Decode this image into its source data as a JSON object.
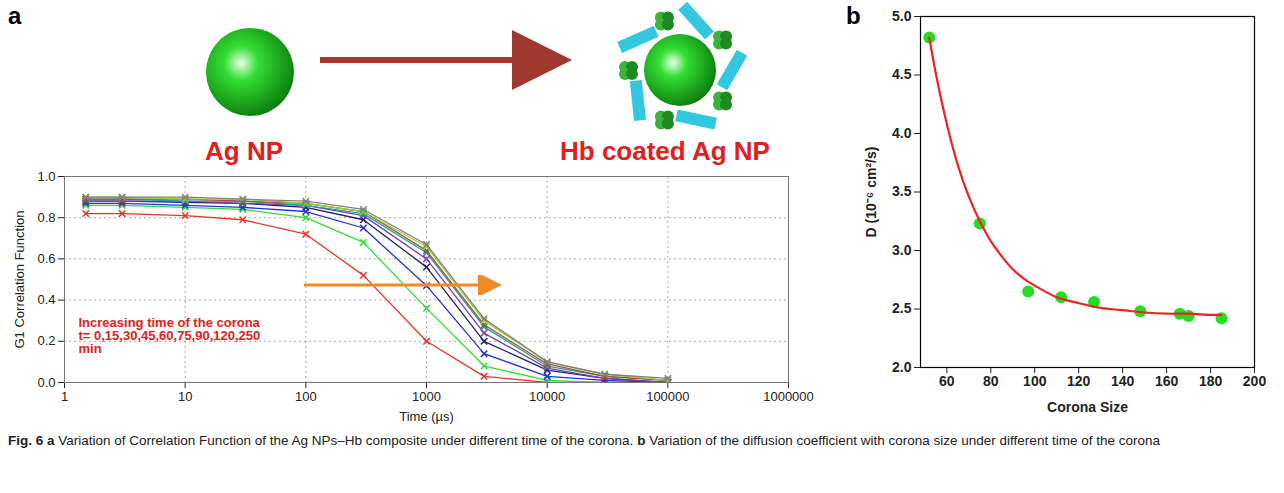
{
  "chart_data": [
    {
      "type": "line",
      "panel_label": "a",
      "xlabel": "Time (µs)",
      "ylabel": "G1 Correlation Function",
      "log": "x",
      "grid": true,
      "marker": "x",
      "annotations": [
        "Increasing time of the corona",
        "t= 0,15,30,45,60,75,90,120,250",
        "min"
      ],
      "xlim": [
        1,
        1000000
      ],
      "xticks": [
        1,
        10,
        100,
        1000,
        10000,
        100000,
        1000000
      ],
      "ylim": [
        0,
        1
      ],
      "yticks": [
        {
          "value": 0,
          "label": "0.0"
        },
        {
          "value": 0.2,
          "label": "0.2"
        },
        {
          "value": 0.4,
          "label": "0.4"
        },
        {
          "value": 0.6,
          "label": "0.6"
        },
        {
          "value": 0.8,
          "label": "0.8"
        },
        {
          "value": 1,
          "label": "1.0"
        }
      ],
      "x": [
        1.5,
        3,
        10,
        30,
        100,
        300,
        1000,
        3000,
        10000,
        30000,
        100000
      ],
      "series": [
        {
          "color": "#e8362d",
          "values": [
            0.82,
            0.82,
            0.81,
            0.79,
            0.72,
            0.52,
            0.2,
            0.03,
            0.0,
            0.0,
            0.0
          ]
        },
        {
          "color": "#33dd33",
          "values": [
            0.86,
            0.86,
            0.85,
            0.84,
            0.8,
            0.68,
            0.36,
            0.08,
            0.01,
            0.0,
            0.0
          ]
        },
        {
          "color": "#2233dd",
          "values": [
            0.87,
            0.87,
            0.86,
            0.85,
            0.83,
            0.75,
            0.47,
            0.14,
            0.03,
            0.01,
            0.0
          ]
        },
        {
          "color": "#1f1f7a",
          "values": [
            0.88,
            0.88,
            0.875,
            0.87,
            0.85,
            0.79,
            0.56,
            0.2,
            0.06,
            0.02,
            0.0
          ]
        },
        {
          "color": "#7b3fa0",
          "values": [
            0.88,
            0.88,
            0.88,
            0.87,
            0.86,
            0.81,
            0.6,
            0.24,
            0.07,
            0.02,
            0.0
          ]
        },
        {
          "color": "#20a0a0",
          "values": [
            0.89,
            0.89,
            0.88,
            0.88,
            0.86,
            0.82,
            0.63,
            0.27,
            0.08,
            0.03,
            0.01
          ]
        },
        {
          "color": "#a0522d",
          "values": [
            0.89,
            0.89,
            0.89,
            0.88,
            0.87,
            0.83,
            0.64,
            0.28,
            0.09,
            0.03,
            0.01
          ]
        },
        {
          "color": "#9acd32",
          "values": [
            0.9,
            0.9,
            0.89,
            0.89,
            0.87,
            0.83,
            0.66,
            0.3,
            0.1,
            0.04,
            0.01
          ]
        },
        {
          "color": "#808080",
          "values": [
            0.9,
            0.9,
            0.9,
            0.89,
            0.88,
            0.84,
            0.67,
            0.31,
            0.1,
            0.04,
            0.02
          ]
        }
      ]
    },
    {
      "type": "scatter",
      "panel_label": "b",
      "xlabel": "Corona Size",
      "ylabel": "D (10⁻⁶ cm²/s)",
      "xlim": [
        48,
        200
      ],
      "xticks": [
        60,
        80,
        100,
        120,
        140,
        160,
        180,
        200
      ],
      "ylim": [
        2,
        5
      ],
      "yticks": [
        {
          "value": 2,
          "label": "2.0"
        },
        {
          "value": 2.5,
          "label": "2.5"
        },
        {
          "value": 3,
          "label": "3.0"
        },
        {
          "value": 3.5,
          "label": "3.5"
        },
        {
          "value": 4,
          "label": "4.0"
        },
        {
          "value": 4.5,
          "label": "4.5"
        },
        {
          "value": 5,
          "label": "5.0"
        }
      ],
      "series": [
        {
          "type": "scatter",
          "marker": "circle",
          "color": "#22dd22",
          "x": [
            52,
            75,
            97,
            112,
            127,
            148,
            166,
            170,
            185
          ],
          "values": [
            4.82,
            3.23,
            2.65,
            2.6,
            2.56,
            2.48,
            2.46,
            2.44,
            2.42
          ]
        },
        {
          "type": "line",
          "color": "#ee2222",
          "x": [
            52,
            55,
            60,
            65,
            70,
            75,
            80,
            85,
            90,
            95,
            100,
            110,
            120,
            130,
            140,
            150,
            160,
            170,
            180,
            185
          ],
          "values": [
            4.82,
            4.51,
            4.08,
            3.73,
            3.46,
            3.25,
            3.08,
            2.95,
            2.84,
            2.76,
            2.7,
            2.6,
            2.55,
            2.51,
            2.49,
            2.47,
            2.46,
            2.46,
            2.45,
            2.45
          ]
        }
      ]
    }
  ],
  "figure": {
    "labels": [
      "Ag NP",
      "Hb coated Ag NP"
    ],
    "caption": {
      "label": "Fig. 6",
      "parts": [
        {
          "letter": "a",
          "text": "Variation of Correlation Function of the Ag NPs–Hb composite under different time of the corona."
        },
        {
          "letter": "b",
          "text": "Variation of the diffusion coefficient with corona size under different time of the corona"
        }
      ]
    }
  }
}
